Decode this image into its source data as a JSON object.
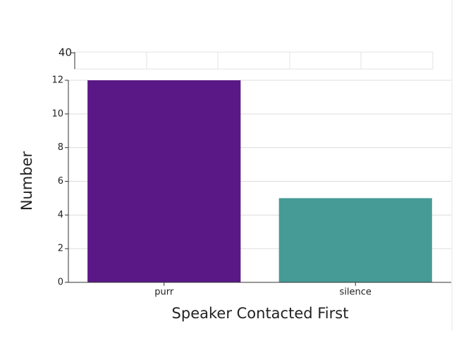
{
  "header_axis": {
    "tick": 40
  },
  "chart_data": {
    "type": "bar",
    "categories": [
      "purr",
      "silence"
    ],
    "values": [
      12,
      5
    ],
    "colors": [
      "#5a1886",
      "#469b96"
    ],
    "ylim": [
      0,
      12
    ],
    "yticks": [
      0,
      2,
      4,
      6,
      8,
      10,
      12
    ],
    "grid": true,
    "ylabel": "Number",
    "xlabel": "Speaker Contacted First"
  }
}
